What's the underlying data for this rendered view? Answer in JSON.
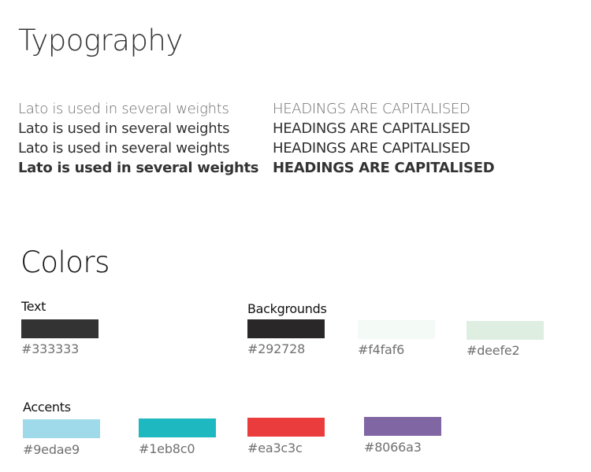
{
  "typography": {
    "title": "Typography",
    "samples": [
      "Lato is used in several weights",
      "Lato is used in several weights",
      "Lato is used in several weights",
      "Lato is used in several weights"
    ],
    "headings": [
      "HEADINGS ARE CAPITALISED",
      "HEADINGS ARE CAPITALISED",
      "HEADINGS ARE CAPITALISED",
      "HEADINGS ARE CAPITALISED"
    ]
  },
  "colors": {
    "title": "Colors",
    "groups": {
      "text": {
        "label": "Text",
        "swatches": [
          {
            "hex": "#333333",
            "color": "#333333"
          }
        ]
      },
      "backgrounds": {
        "label": "Backgrounds",
        "swatches": [
          {
            "hex": "#292728",
            "color": "#292728"
          },
          {
            "hex": "#f4faf6",
            "color": "#f4faf6"
          },
          {
            "hex": "#deefe2",
            "color": "#deefe2"
          }
        ]
      },
      "accents": {
        "label": "Accents",
        "swatches": [
          {
            "hex": "#9edae9",
            "color": "#9edae9"
          },
          {
            "hex": "#1eb8c0",
            "color": "#1eb8c0"
          },
          {
            "hex": "#ea3c3c",
            "color": "#ea3c3c"
          },
          {
            "hex": "#8066a3",
            "color": "#8066a3"
          }
        ]
      }
    }
  }
}
